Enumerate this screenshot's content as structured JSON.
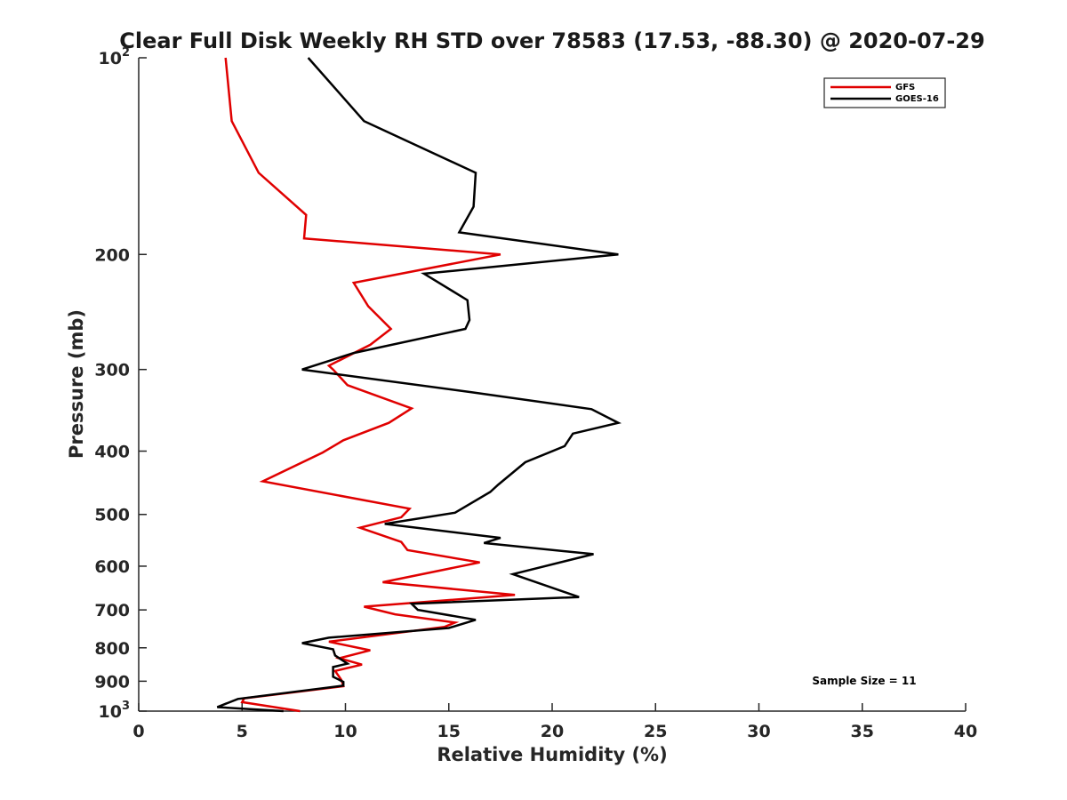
{
  "chart_data": {
    "type": "line",
    "title": "Clear Full Disk Weekly RH STD over 78583 (17.53, -88.30) @ 2020-07-29",
    "xlabel": "Relative Humidity (%)",
    "ylabel": "Pressure (mb)",
    "xlim": [
      0,
      40
    ],
    "ylim": [
      100,
      1000
    ],
    "y_scale": "log",
    "y_reversed": true,
    "grid": false,
    "legend_position": "top-right",
    "x_ticks": [
      {
        "value": 0,
        "label": "0"
      },
      {
        "value": 5,
        "label": "5"
      },
      {
        "value": 10,
        "label": "10"
      },
      {
        "value": 15,
        "label": "15"
      },
      {
        "value": 20,
        "label": "20"
      },
      {
        "value": 25,
        "label": "25"
      },
      {
        "value": 30,
        "label": "30"
      },
      {
        "value": 35,
        "label": "35"
      },
      {
        "value": 40,
        "label": "40"
      }
    ],
    "y_ticks": [
      {
        "value": 100,
        "label": "10",
        "sup": "2"
      },
      {
        "value": 200,
        "label": "200",
        "sup": ""
      },
      {
        "value": 300,
        "label": "300",
        "sup": ""
      },
      {
        "value": 400,
        "label": "400",
        "sup": ""
      },
      {
        "value": 500,
        "label": "500",
        "sup": ""
      },
      {
        "value": 600,
        "label": "600",
        "sup": ""
      },
      {
        "value": 700,
        "label": "700",
        "sup": ""
      },
      {
        "value": 800,
        "label": "800",
        "sup": ""
      },
      {
        "value": 900,
        "label": "900",
        "sup": ""
      },
      {
        "value": 1000,
        "label": "10",
        "sup": "3"
      }
    ],
    "annotation": "Sample Size = 11",
    "series": [
      {
        "name": "GFS",
        "color": "#e00000",
        "points": [
          [
            4.2,
            100
          ],
          [
            4.5,
            125
          ],
          [
            5.8,
            150
          ],
          [
            8.1,
            174
          ],
          [
            8.0,
            189
          ],
          [
            17.5,
            200
          ],
          [
            10.4,
            221
          ],
          [
            11.1,
            240
          ],
          [
            12.2,
            260
          ],
          [
            11.2,
            275
          ],
          [
            9.2,
            296
          ],
          [
            9.4,
            300
          ],
          [
            10.1,
            317
          ],
          [
            13.2,
            344
          ],
          [
            12.1,
            362
          ],
          [
            9.9,
            385
          ],
          [
            8.9,
            402
          ],
          [
            6.0,
            445
          ],
          [
            13.1,
            490
          ],
          [
            12.7,
            505
          ],
          [
            10.7,
            524
          ],
          [
            12.7,
            551
          ],
          [
            13.0,
            567
          ],
          [
            16.5,
            592
          ],
          [
            11.8,
            635
          ],
          [
            18.2,
            664
          ],
          [
            10.9,
            692
          ],
          [
            12.4,
            711
          ],
          [
            15.3,
            732
          ],
          [
            14.8,
            743
          ],
          [
            9.2,
            783
          ],
          [
            11.2,
            807
          ],
          [
            9.7,
            830
          ],
          [
            10.8,
            849
          ],
          [
            9.5,
            868
          ],
          [
            9.8,
            896
          ],
          [
            9.9,
            916
          ],
          [
            5.1,
            956
          ],
          [
            5.0,
            969
          ],
          [
            7.8,
            1000
          ]
        ]
      },
      {
        "name": "GOES-16",
        "color": "#000000",
        "points": [
          [
            8.2,
            100
          ],
          [
            10.9,
            125
          ],
          [
            16.3,
            150
          ],
          [
            16.2,
            169
          ],
          [
            15.5,
            185
          ],
          [
            23.2,
            200
          ],
          [
            13.8,
            214
          ],
          [
            15.9,
            235
          ],
          [
            16.0,
            252
          ],
          [
            15.8,
            260
          ],
          [
            10.4,
            283
          ],
          [
            7.9,
            300
          ],
          [
            16.1,
            325
          ],
          [
            21.9,
            345
          ],
          [
            23.2,
            362
          ],
          [
            21.0,
            376
          ],
          [
            20.6,
            393
          ],
          [
            18.7,
            416
          ],
          [
            17.4,
            450
          ],
          [
            17.0,
            462
          ],
          [
            15.3,
            497
          ],
          [
            11.9,
            517
          ],
          [
            17.5,
            543
          ],
          [
            16.7,
            553
          ],
          [
            22.0,
            575
          ],
          [
            18.1,
            617
          ],
          [
            21.3,
            669
          ],
          [
            13.2,
            685
          ],
          [
            13.5,
            700
          ],
          [
            16.3,
            725
          ],
          [
            15.0,
            746
          ],
          [
            9.2,
            772
          ],
          [
            7.9,
            787
          ],
          [
            9.4,
            804
          ],
          [
            9.5,
            822
          ],
          [
            10.1,
            846
          ],
          [
            9.4,
            856
          ],
          [
            9.4,
            886
          ],
          [
            9.9,
            902
          ],
          [
            9.9,
            914
          ],
          [
            4.8,
            958
          ],
          [
            3.8,
            986
          ],
          [
            7.0,
            1000
          ]
        ]
      }
    ]
  }
}
